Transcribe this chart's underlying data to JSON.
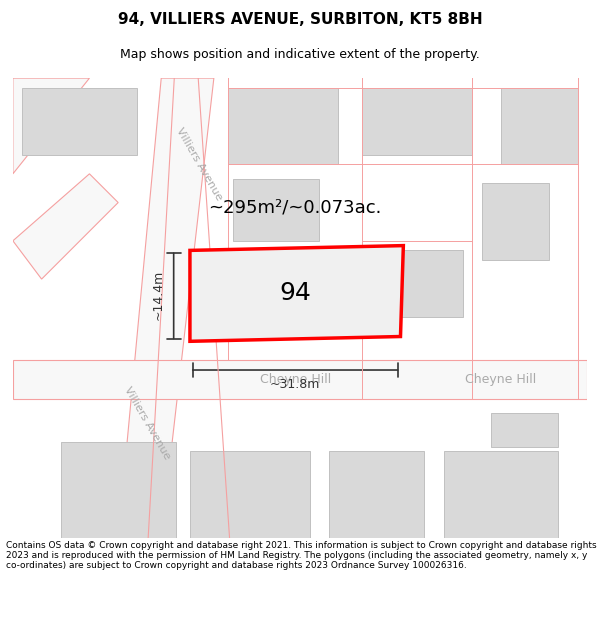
{
  "title": "94, VILLIERS AVENUE, SURBITON, KT5 8BH",
  "subtitle": "Map shows position and indicative extent of the property.",
  "footer": "Contains OS data © Crown copyright and database right 2021. This information is subject to Crown copyright and database rights 2023 and is reproduced with the permission of HM Land Registry. The polygons (including the associated geometry, namely x, y co-ordinates) are subject to Crown copyright and database rights 2023 Ordnance Survey 100026316.",
  "area_label": "~295m²/~0.073ac.",
  "width_label": "~31.8m",
  "height_label": "~14.4m",
  "plot_number": "94",
  "road_label_1": "Villiers Avenue",
  "road_label_2": "Villiers Avenue",
  "road_label_3": "Cheyne Hill",
  "road_label_4": "Cheyne Hill",
  "bg_color": "#ffffff",
  "map_bg": "#f9f9f9",
  "building_fill": "#d9d9d9",
  "building_edge": "#c0c0c0",
  "road_fill": "#ffffff",
  "road_line_color": "#f5a0a0",
  "highlight_color": "#ff0000",
  "dim_line_color": "#333333",
  "road_text_color": "#aaaaaa",
  "title_fontsize": 11,
  "subtitle_fontsize": 9,
  "footer_fontsize": 6.5
}
